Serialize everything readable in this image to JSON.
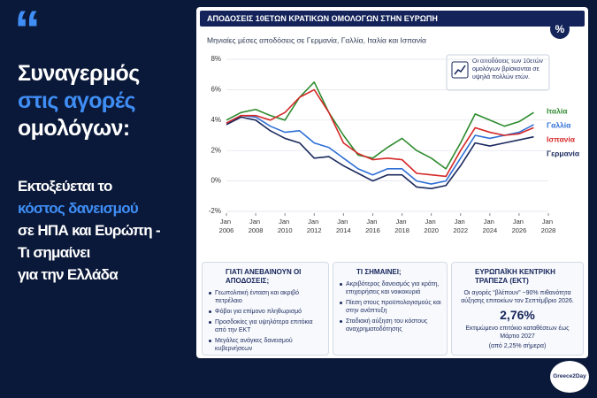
{
  "headline": {
    "quote": "“",
    "lines": [
      "Συναγερμός",
      "στις αγορές",
      "ομολόγων:"
    ],
    "sub": [
      "Εκτοξεύεται το",
      "κόστος δανεισμού",
      "σε ΗΠΑ και Ευρώπη -",
      "Τι σημαίνει",
      "για την Ελλάδα"
    ]
  },
  "badge": "%",
  "chart_data": {
    "type": "line",
    "title": "ΑΠΟΔΟΣΕΙΣ 10ΕΤΩΝ ΚΡΑΤΙΚΩΝ ΟΜΟΛΟΓΩΝ ΣΤΗΝ ΕΥΡΩΠΗ",
    "subtitle": "Μηνιαίες μέσες αποδόσεις σε Γερμανία, Γαλλία, Ιταλία και Ισπανία",
    "annotation": "Οι αποδόσεις των 10ετών ομολόγων βρίσκονται σε υψηλά πολλών ετών.",
    "x": [
      2006,
      2007,
      2008,
      2009,
      2010,
      2011,
      2012,
      2013,
      2014,
      2015,
      2016,
      2017,
      2018,
      2019,
      2020,
      2021,
      2022,
      2023,
      2024,
      2025,
      2026,
      2027
    ],
    "series": [
      {
        "name": "Ιταλία",
        "color": "#2e8b2e",
        "values": [
          4.0,
          4.5,
          4.7,
          4.3,
          4.0,
          5.5,
          6.5,
          4.5,
          3.0,
          1.7,
          1.5,
          2.2,
          2.8,
          2.0,
          1.5,
          0.8,
          2.5,
          4.4,
          4.0,
          3.6,
          3.9,
          4.5
        ]
      },
      {
        "name": "Γαλλία",
        "color": "#2f6fd6",
        "values": [
          3.8,
          4.3,
          4.2,
          3.6,
          3.2,
          3.3,
          2.5,
          2.2,
          1.5,
          0.8,
          0.4,
          0.8,
          0.8,
          0.0,
          -0.2,
          0.0,
          1.5,
          3.0,
          2.8,
          3.0,
          3.2,
          3.7
        ]
      },
      {
        "name": "Ισπανία",
        "color": "#d62828",
        "values": [
          3.8,
          4.3,
          4.3,
          4.0,
          4.5,
          5.5,
          6.0,
          4.5,
          2.5,
          1.8,
          1.4,
          1.5,
          1.4,
          0.5,
          0.4,
          0.3,
          2.0,
          3.5,
          3.2,
          3.0,
          3.1,
          3.5
        ]
      },
      {
        "name": "Γερμανία",
        "color": "#1b2a5e",
        "values": [
          3.7,
          4.2,
          4.0,
          3.3,
          2.8,
          2.5,
          1.5,
          1.6,
          1.0,
          0.5,
          0.0,
          0.4,
          0.4,
          -0.4,
          -0.5,
          -0.3,
          1.0,
          2.5,
          2.3,
          2.5,
          2.7,
          2.9
        ]
      }
    ],
    "xlim": [
      2006,
      2028
    ],
    "xticks": [
      {
        "value": 2006,
        "label": "Jan 2006"
      },
      {
        "value": 2008,
        "label": "Jan 2008"
      },
      {
        "value": 2010,
        "label": "Jan 2010"
      },
      {
        "value": 2012,
        "label": "Jan 2012"
      },
      {
        "value": 2014,
        "label": "Jan 2014"
      },
      {
        "value": 2016,
        "label": "Jan 2016"
      },
      {
        "value": 2018,
        "label": "Jan 2018"
      },
      {
        "value": 2020,
        "label": "Jan 2020"
      },
      {
        "value": 2022,
        "label": "Jan 2022"
      },
      {
        "value": 2024,
        "label": "Jan 2024"
      },
      {
        "value": 2026,
        "label": "Jan 2026"
      },
      {
        "value": 2028,
        "label": "Jan 2028"
      }
    ],
    "ylim": [
      -2,
      8
    ],
    "yticks": [
      {
        "value": -2,
        "label": "-2%"
      },
      {
        "value": 0,
        "label": "0%"
      },
      {
        "value": 2,
        "label": "2%"
      },
      {
        "value": 4,
        "label": "4%"
      },
      {
        "value": 6,
        "label": "6%"
      },
      {
        "value": 8,
        "label": "8%"
      }
    ],
    "grid": true
  },
  "panels": [
    {
      "title": "ΓΙΑΤΙ ΑΝΕΒΑΙΝΟΥΝ ΟΙ ΑΠΟΔΟΣΕΙΣ;",
      "items": [
        "Γεωπολιτική ένταση και ακριβό πετρέλαιο",
        "Φόβοι για επίμονο πληθωρισμό",
        "Προσδοκίες για υψηλότερα επιτόκια από την ΕΚΤ",
        "Μεγάλες ανάγκες δανεισμού κυβερνήσεων"
      ]
    },
    {
      "title": "ΤΙ ΣΗΜΑΙΝΕΙ;",
      "items": [
        "Ακριβότερος δανεισμός για κράτη, επιχειρήσεις και νοικοκυριά",
        "Πίεση στους προϋπολογισμούς και στην ανάπτυξη",
        "Σταδιακή αύξηση του κόστους αναχρηματοδότησης"
      ]
    },
    {
      "title": "ΕΥΡΩΠΑΪΚΗ ΚΕΝΤΡΙΚΗ ΤΡΑΠΕΖΑ (ΕΚΤ)",
      "text": "Οι αγορές “βλέπουν” ~90% πιθανότητα αύξησης επιτοκίων τον Σεπτέμβριο 2026.",
      "figure": "2,76%",
      "note": "Εκτιμώμενο επιτόκιο καταθέσεων έως Μάρτιο 2027",
      "sub": "(από 2,25% σήμερα)"
    }
  ],
  "logo": "Greece2Day"
}
